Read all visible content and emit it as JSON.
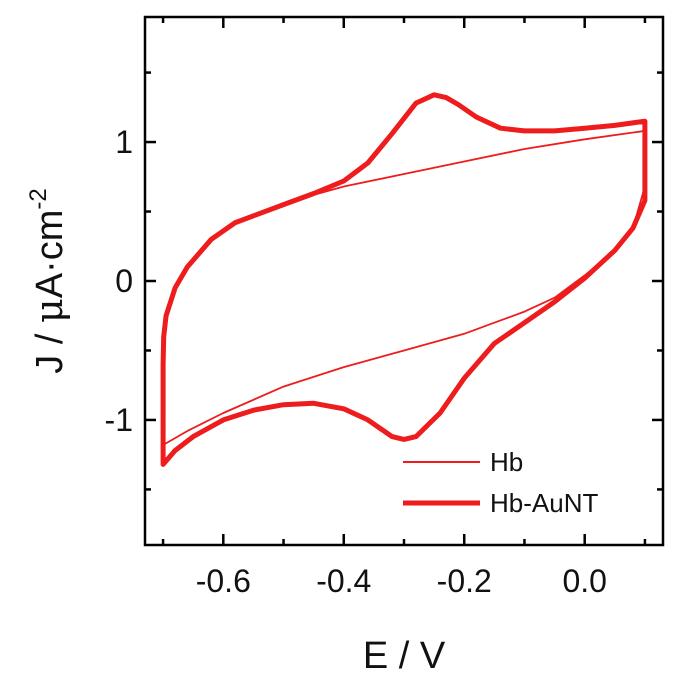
{
  "chart_data": {
    "type": "line",
    "title": "",
    "xlabel": "E / V",
    "ylabel_prefix": "J / ",
    "ylabel_mu": "μ",
    "ylabel_unit": "A·cm",
    "ylabel_exp": "-2",
    "xlim": [
      -0.73,
      0.13
    ],
    "ylim": [
      -1.9,
      1.9
    ],
    "x_ticks": [
      -0.6,
      -0.4,
      -0.2,
      0.0
    ],
    "x_tick_labels": [
      "-0.6",
      "-0.4",
      "-0.2",
      "0.0"
    ],
    "y_ticks": [
      -1,
      0,
      1
    ],
    "y_tick_labels": [
      "-1",
      "0",
      "1"
    ],
    "x_minor_ticks": [
      -0.7,
      -0.5,
      -0.3,
      -0.1,
      0.1
    ],
    "y_minor_ticks": [
      -1.5,
      -0.5,
      0.5,
      1.5
    ],
    "grid": false,
    "legend_position": "bottom-right",
    "series": [
      {
        "name": "Hb",
        "color": "#ee1c1c",
        "line": "thin",
        "x": [
          -0.7,
          -0.7,
          -0.699,
          -0.695,
          -0.68,
          -0.66,
          -0.62,
          -0.58,
          -0.5,
          -0.45,
          -0.4,
          -0.3,
          -0.2,
          -0.1,
          0.0,
          0.1,
          0.1,
          0.08,
          0.05,
          0.0,
          -0.05,
          -0.1,
          -0.15,
          -0.2,
          -0.3,
          -0.4,
          -0.5,
          -0.6,
          -0.66,
          -0.7
        ],
        "y": [
          -1.18,
          -0.6,
          -0.4,
          -0.25,
          -0.05,
          0.1,
          0.3,
          0.42,
          0.55,
          0.62,
          0.68,
          0.77,
          0.86,
          0.95,
          1.02,
          1.08,
          0.68,
          0.38,
          0.22,
          0.04,
          -0.12,
          -0.22,
          -0.3,
          -0.38,
          -0.5,
          -0.62,
          -0.76,
          -0.95,
          -1.08,
          -1.18
        ]
      },
      {
        "name": "Hb-AuNT",
        "color": "#ee1c1c",
        "line": "thick",
        "x": [
          -0.7,
          -0.7,
          -0.699,
          -0.695,
          -0.68,
          -0.66,
          -0.62,
          -0.58,
          -0.5,
          -0.45,
          -0.4,
          -0.36,
          -0.32,
          -0.28,
          -0.25,
          -0.23,
          -0.21,
          -0.18,
          -0.14,
          -0.1,
          -0.05,
          0.0,
          0.05,
          0.1,
          0.1,
          0.08,
          0.05,
          0.0,
          -0.05,
          -0.1,
          -0.15,
          -0.2,
          -0.24,
          -0.28,
          -0.3,
          -0.32,
          -0.36,
          -0.4,
          -0.45,
          -0.5,
          -0.55,
          -0.6,
          -0.65,
          -0.68,
          -0.7
        ],
        "y": [
          -1.32,
          -0.6,
          -0.4,
          -0.25,
          -0.05,
          0.1,
          0.3,
          0.42,
          0.55,
          0.63,
          0.72,
          0.85,
          1.06,
          1.28,
          1.34,
          1.32,
          1.27,
          1.18,
          1.1,
          1.08,
          1.08,
          1.1,
          1.12,
          1.15,
          0.58,
          0.38,
          0.22,
          0.02,
          -0.15,
          -0.3,
          -0.45,
          -0.7,
          -0.95,
          -1.12,
          -1.14,
          -1.12,
          -1.0,
          -0.92,
          -0.88,
          -0.89,
          -0.93,
          -1.0,
          -1.12,
          -1.22,
          -1.32
        ]
      }
    ]
  }
}
